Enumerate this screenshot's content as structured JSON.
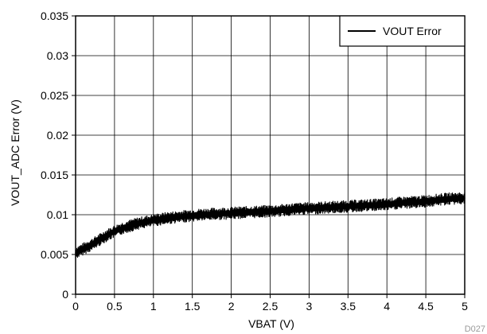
{
  "chart_data": {
    "type": "line",
    "title": "",
    "xlabel": "VBAT (V)",
    "ylabel": "VOUT_ADC Error (V)",
    "xlim": [
      0,
      5
    ],
    "ylim": [
      0,
      0.035
    ],
    "grid": true,
    "legend_position": "top-right",
    "footnote": "D027",
    "x_ticks": [
      "0",
      "0.5",
      "1",
      "1.5",
      "2",
      "2.5",
      "3",
      "3.5",
      "4",
      "4.5",
      "5"
    ],
    "y_ticks": [
      "0",
      "0.005",
      "0.01",
      "0.015",
      "0.02",
      "0.025",
      "0.03",
      "0.035"
    ],
    "series": [
      {
        "name": "VOUT Error",
        "color": "#000000",
        "x": [
          0,
          0.1,
          0.2,
          0.3,
          0.4,
          0.5,
          0.6,
          0.7,
          0.8,
          0.9,
          1.0,
          1.2,
          1.4,
          1.6,
          1.8,
          2.0,
          2.2,
          2.4,
          2.6,
          2.8,
          3.0,
          3.2,
          3.4,
          3.6,
          3.8,
          4.0,
          4.2,
          4.4,
          4.6,
          4.8,
          5.0
        ],
        "y": [
          0.0052,
          0.0057,
          0.0062,
          0.0068,
          0.0074,
          0.0079,
          0.0083,
          0.0086,
          0.0089,
          0.0091,
          0.0093,
          0.0096,
          0.0098,
          0.01,
          0.0101,
          0.0102,
          0.0103,
          0.0104,
          0.0105,
          0.0107,
          0.0108,
          0.0109,
          0.011,
          0.0111,
          0.0112,
          0.0113,
          0.0115,
          0.0116,
          0.0118,
          0.012,
          0.0121
        ],
        "noise_band": 0.0008
      }
    ]
  }
}
